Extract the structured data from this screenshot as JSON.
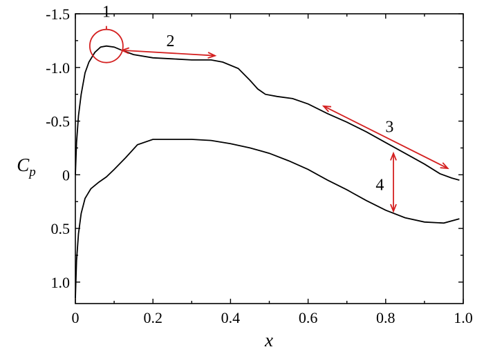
{
  "chart_data": {
    "type": "line",
    "xlabel": "x",
    "ylabel": {
      "main": "C",
      "sub": "p"
    },
    "xlim": [
      0,
      1.0
    ],
    "ylim": [
      1.2,
      -1.5
    ],
    "y_inverted": true,
    "grid": false,
    "xticks": [
      0,
      0.2,
      0.4,
      0.6,
      0.8,
      1.0
    ],
    "xtick_labels": [
      "0",
      "0.2",
      "0.4",
      "0.6",
      "0.8",
      "1.0"
    ],
    "yticks": [
      -1.5,
      -1.0,
      -0.5,
      0,
      0.5,
      1.0
    ],
    "ytick_labels": [
      "-1.5",
      "-1.0",
      "-0.5",
      "0",
      "0.5",
      "1.0"
    ],
    "series": [
      {
        "x": [
          0.0,
          0.003,
          0.008,
          0.015,
          0.025,
          0.035,
          0.05,
          0.065,
          0.08,
          0.1,
          0.12,
          0.15,
          0.2,
          0.25,
          0.3,
          0.35,
          0.38,
          0.42,
          0.45,
          0.47,
          0.49,
          0.52,
          0.56,
          0.6,
          0.65,
          0.7,
          0.75,
          0.8,
          0.85,
          0.9,
          0.94,
          0.97,
          0.99
        ],
        "values": [
          0.0,
          -0.3,
          -0.55,
          -0.75,
          -0.95,
          -1.05,
          -1.14,
          -1.19,
          -1.2,
          -1.19,
          -1.16,
          -1.12,
          -1.09,
          -1.08,
          -1.07,
          -1.07,
          -1.05,
          -0.99,
          -0.88,
          -0.8,
          -0.75,
          -0.73,
          -0.71,
          -0.66,
          -0.57,
          -0.49,
          -0.4,
          -0.3,
          -0.2,
          -0.1,
          -0.01,
          0.03,
          0.05
        ]
      },
      {
        "x": [
          0.0,
          0.003,
          0.008,
          0.015,
          0.025,
          0.04,
          0.06,
          0.08,
          0.1,
          0.13,
          0.16,
          0.2,
          0.25,
          0.3,
          0.35,
          0.4,
          0.45,
          0.5,
          0.55,
          0.6,
          0.65,
          0.7,
          0.75,
          0.8,
          0.85,
          0.9,
          0.95,
          0.99
        ],
        "values": [
          1.15,
          0.8,
          0.55,
          0.36,
          0.22,
          0.13,
          0.07,
          0.02,
          -0.05,
          -0.16,
          -0.28,
          -0.33,
          -0.33,
          -0.33,
          -0.32,
          -0.29,
          -0.25,
          -0.2,
          -0.13,
          -0.05,
          0.05,
          0.14,
          0.24,
          0.33,
          0.4,
          0.44,
          0.45,
          0.41
        ]
      }
    ],
    "annotations": [
      {
        "label": "1",
        "type": "circle",
        "at": {
          "x": 0.08,
          "y": -1.2
        }
      },
      {
        "label": "2",
        "type": "double-arrow",
        "from": {
          "x": 0.12,
          "y": -1.16
        },
        "to": {
          "x": 0.36,
          "y": -1.11
        },
        "label_at": {
          "x": 0.245,
          "y": -1.25
        }
      },
      {
        "label": "3",
        "type": "double-arrow",
        "from": {
          "x": 0.64,
          "y": -0.64
        },
        "to": {
          "x": 0.96,
          "y": -0.06
        },
        "label_at": {
          "x": 0.81,
          "y": -0.45
        }
      },
      {
        "label": "4",
        "type": "double-arrow",
        "from": {
          "x": 0.82,
          "y": -0.2
        },
        "to": {
          "x": 0.82,
          "y": 0.34
        },
        "label_at": {
          "x": 0.785,
          "y": 0.09
        }
      }
    ],
    "annotation_color": "#d42020",
    "line_color": "#000000"
  }
}
